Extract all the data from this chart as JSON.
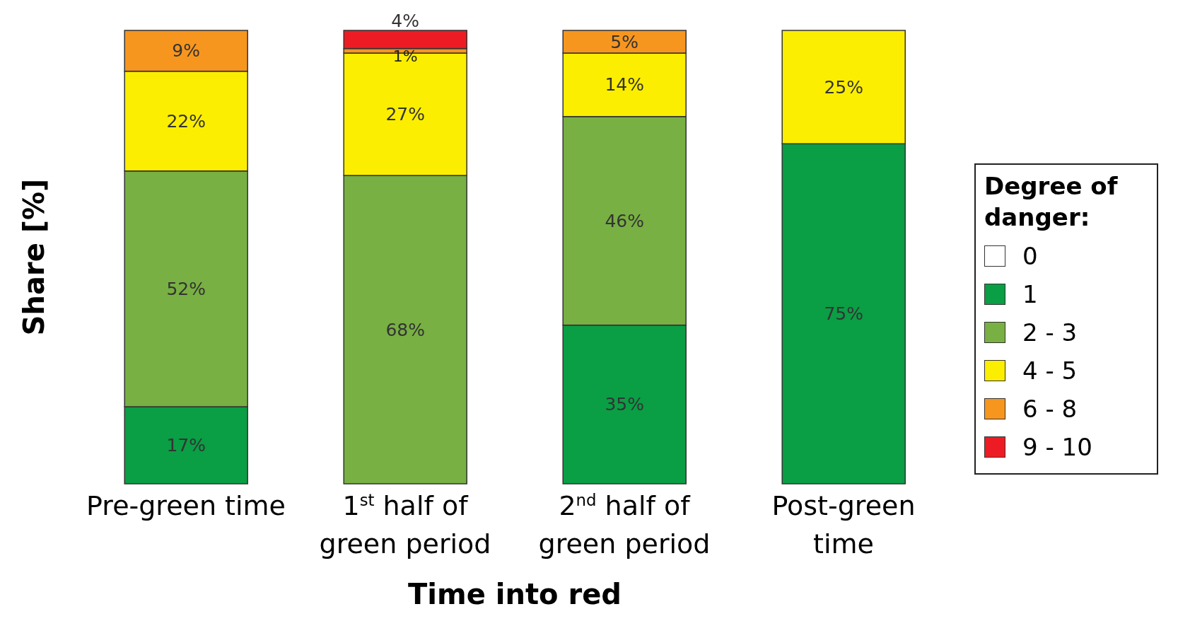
{
  "chart_data": {
    "type": "bar",
    "stacked": true,
    "xlabel": "Time into red",
    "ylabel": "Share [%]",
    "legend_title": "Degree of danger:",
    "legend": "right",
    "tick_labels": "x",
    "categories": [
      "Pre-green time",
      "1$^{st}$ half of green period",
      "2$^{nd}$ half of green period",
      "Post-green time"
    ],
    "series": [
      {
        "name": "0",
        "color": "#ffffff",
        "values": [
          0,
          0,
          0,
          0
        ],
        "value_labels": [
          null,
          null,
          null,
          null
        ]
      },
      {
        "name": "1",
        "color": "#0a9e45",
        "values": [
          17,
          0,
          35,
          75
        ],
        "value_labels": [
          "17%",
          null,
          "35%",
          "75%"
        ]
      },
      {
        "name": "2 - 3",
        "color": "#78b043",
        "values": [
          52,
          68,
          46,
          0
        ],
        "value_labels": [
          "52%",
          "68%",
          "46%",
          null
        ]
      },
      {
        "name": "4 - 5",
        "color": "#fcee00",
        "values": [
          22,
          27,
          14,
          25
        ],
        "value_labels": [
          "22%",
          "27%",
          "14%",
          "25%"
        ]
      },
      {
        "name": "6 - 8",
        "color": "#f7961e",
        "values": [
          9,
          1,
          5,
          0
        ],
        "value_labels": [
          "9%",
          "1%",
          "5%",
          null
        ]
      },
      {
        "name": "9 - 10",
        "color": "#ed1c24",
        "values": [
          0,
          4,
          0,
          0
        ],
        "value_labels": [
          null,
          "4%",
          null,
          null
        ]
      }
    ]
  }
}
